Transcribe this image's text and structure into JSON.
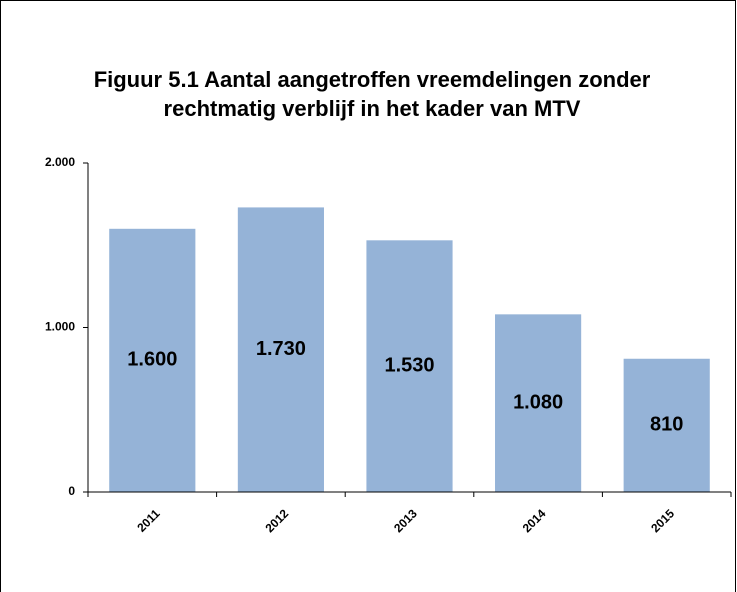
{
  "chart_data": {
    "type": "bar",
    "title": [
      "Figuur 5.1 Aantal aangetroffen vreemdelingen zonder",
      "rechtmatig verblijf in het kader van MTV"
    ],
    "categories": [
      "2011",
      "2012",
      "2013",
      "2014",
      "2015"
    ],
    "values": [
      1600,
      1730,
      1530,
      1080,
      810
    ],
    "value_labels": [
      "1.600",
      "1.730",
      "1.530",
      "1.080",
      "810"
    ],
    "color": "#95b3d7",
    "ylim": [
      0,
      2000
    ],
    "yticks": [
      0,
      {
        "value": 1000,
        "label": "1.000"
      },
      {
        "value": 2000,
        "label": "2.000"
      }
    ],
    "grid": false
  }
}
